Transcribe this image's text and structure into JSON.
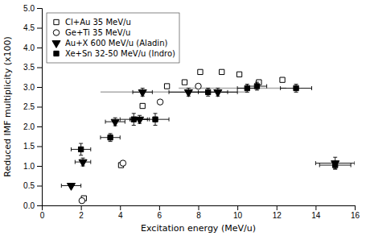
{
  "chart_data": {
    "type": "scatter",
    "xlabel": "Excitation energy (MeV/u)",
    "ylabel": "Reduced IMF multiplicity (x100)",
    "xlim": [
      0,
      16
    ],
    "ylim": [
      0,
      5
    ],
    "xticks": [
      0,
      2,
      4,
      6,
      8,
      10,
      12,
      14,
      16
    ],
    "yticks": [
      {
        "value": 0,
        "label": "0.0"
      },
      {
        "value": 0.5,
        "label": "0.5"
      },
      {
        "value": 1,
        "label": "1.0"
      },
      {
        "value": 1.5,
        "label": "1.5"
      },
      {
        "value": 2,
        "label": "2.0"
      },
      {
        "value": 2.5,
        "label": "2.5"
      },
      {
        "value": 3,
        "label": "3.0"
      },
      {
        "value": 3.5,
        "label": "3.5"
      },
      {
        "value": 4,
        "label": "4.0"
      },
      {
        "value": 4.5,
        "label": "4.5"
      },
      {
        "value": 5,
        "label": "5.0"
      }
    ],
    "grid": false,
    "legend": "upper-left",
    "series": [
      {
        "name": "Cl+Au 35 MeV/u",
        "marker": "square",
        "color": "white",
        "x": [
          2.15,
          4.05,
          5.15,
          6.4,
          7.3,
          8.1,
          9.2,
          10.1,
          11.1,
          12.3
        ],
        "values": [
          0.18,
          1.02,
          2.52,
          3.02,
          3.12,
          3.38,
          3.38,
          3.32,
          3.12,
          3.18
        ]
      },
      {
        "name": "Ge+Ti 35 MeV/u",
        "marker": "circle",
        "color": "white",
        "x": [
          2.05,
          4.15,
          6.05,
          8.0
        ],
        "values": [
          0.12,
          1.07,
          2.62,
          3.02
        ]
      },
      {
        "name": "Au+X 600 MeV/u (Aladin)",
        "marker": "triangle-down",
        "color": "black",
        "x": [
          1.5,
          2.1,
          3.75,
          5.0,
          5.15,
          7.5,
          9.0,
          15.0
        ],
        "values": [
          0.5,
          1.1,
          2.12,
          2.18,
          2.87,
          2.87,
          2.87,
          1.07
        ],
        "x_errors": [
          0.5,
          0.4,
          0.5,
          0.5,
          0.5,
          1.0,
          1.0,
          1.0
        ],
        "y_errors": [
          0.05,
          0.1,
          0.1,
          0.1,
          0.1,
          0.1,
          0.1,
          0.15
        ]
      },
      {
        "name": "Xe+Sn 32-50 MeV/u (Indro)",
        "marker": "square",
        "color": "black",
        "x": [
          2.0,
          3.5,
          4.7,
          5.8,
          8.5,
          10.5,
          11.0,
          13.0,
          15.0
        ],
        "values": [
          1.42,
          1.72,
          2.18,
          2.18,
          2.87,
          2.97,
          3.02,
          2.97,
          1.02
        ],
        "x_errors": [
          0.5,
          0.5,
          0.7,
          0.7,
          1.0,
          0.5,
          0.5,
          0.8,
          0.8
        ],
        "y_errors": [
          0.15,
          0.1,
          0.15,
          0.15,
          0.1,
          0.1,
          0.1,
          0.1,
          0.1
        ]
      }
    ],
    "reference_lines": [
      {
        "y": 2.87,
        "xmin": 3.0,
        "xmax": 10.5,
        "color": "#aaaaaa"
      },
      {
        "y": 2.97,
        "xmin": 7.0,
        "xmax": 12.5,
        "color": "#aaaaaa"
      }
    ]
  }
}
